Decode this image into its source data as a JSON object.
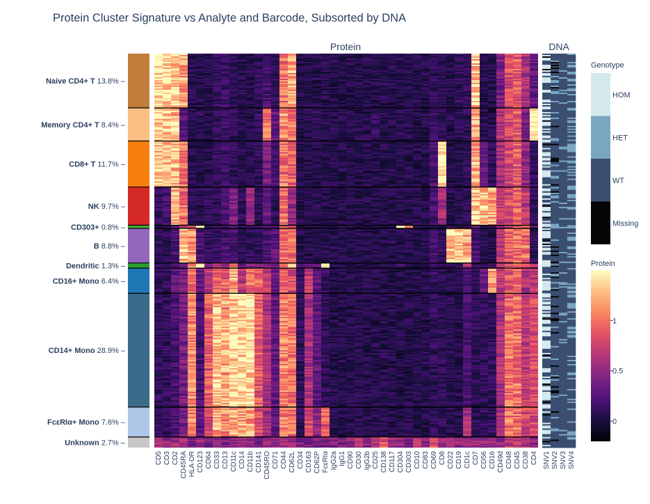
{
  "chart_data": {
    "type": "heatmap",
    "title": "Protein Cluster Signature vs Analyte and Barcode, Subsorted by DNA",
    "panels": {
      "protein": "Protein",
      "dna": "DNA"
    },
    "clusters": [
      {
        "name": "Naive CD4+ T",
        "pct": "13.8%",
        "fraction": 0.138,
        "color": "#c17d3c"
      },
      {
        "name": "Memory CD4+ T",
        "pct": "8.4%",
        "fraction": 0.084,
        "color": "#fbbf83"
      },
      {
        "name": "CD8+ T",
        "pct": "11.7%",
        "fraction": 0.117,
        "color": "#f77f0e"
      },
      {
        "name": "NK",
        "pct": "9.7%",
        "fraction": 0.097,
        "color": "#d62a28"
      },
      {
        "name": "CD303+",
        "pct": "0.8%",
        "fraction": 0.008,
        "color": "#4caf3b"
      },
      {
        "name": "B",
        "pct": "8.8%",
        "fraction": 0.088,
        "color": "#9467bd"
      },
      {
        "name": "Dendritic",
        "pct": "1.3%",
        "fraction": 0.013,
        "color": "#2ca02c"
      },
      {
        "name": "CD16+ Mono",
        "pct": "6.4%",
        "fraction": 0.064,
        "color": "#1f77b4"
      },
      {
        "name": "CD14+ Mono",
        "pct": "28.9%",
        "fraction": 0.289,
        "color": "#3b6b8a"
      },
      {
        "name": "FcεRIα+ Mono",
        "pct": "7.6%",
        "fraction": 0.076,
        "color": "#aec7e8"
      },
      {
        "name": "Unknown",
        "pct": "2.7%",
        "fraction": 0.027,
        "color": "#c7c7c7"
      }
    ],
    "proteins": [
      "CD5",
      "CD3",
      "CD2",
      "CD45RA",
      "HLA-DR",
      "CD123",
      "CD64",
      "CD33",
      "CD13",
      "CD11c",
      "CD14",
      "CD11b",
      "CD141",
      "CD45RO",
      "CD71",
      "CD44",
      "CD62L",
      "CD34",
      "CD163",
      "CD62P",
      "FcεRIα",
      "IgG2a",
      "IgG1",
      "CD90",
      "CD30",
      "IgG2b",
      "CD25",
      "CD138",
      "CD117",
      "CD304",
      "CD303",
      "CD10",
      "CD83",
      "CD69",
      "CD8",
      "CD22",
      "CD19",
      "CD1c",
      "CD7",
      "CD56",
      "CD16",
      "CD49d",
      "CD48",
      "CD45",
      "CD38",
      "CD4"
    ],
    "dna_variants": [
      "SNV1",
      "SNV2",
      "SNV3",
      "SNV4"
    ],
    "cluster_mean_expression": [
      [
        1.4,
        1.4,
        1.35,
        1.2,
        0.05,
        0.05,
        0.05,
        0.1,
        0.15,
        0.1,
        0.05,
        0.05,
        0.1,
        0.2,
        0.1,
        1.0,
        1.2,
        0.05,
        0.05,
        0.05,
        0.05,
        0.05,
        0.05,
        0.05,
        0.05,
        0.05,
        0.05,
        0.05,
        0.05,
        0.05,
        0.05,
        0.05,
        0.05,
        0.1,
        0.1,
        0.05,
        0.1,
        0.1,
        1.3,
        0.05,
        0.05,
        0.4,
        0.8,
        0.9,
        0.6,
        0.3
      ],
      [
        1.3,
        1.3,
        1.3,
        0.25,
        0.05,
        0.05,
        0.05,
        0.1,
        0.15,
        0.1,
        0.05,
        0.05,
        0.1,
        1.0,
        0.3,
        1.1,
        1.0,
        0.05,
        0.1,
        0.1,
        0.05,
        0.05,
        0.05,
        0.05,
        0.05,
        0.05,
        0.1,
        0.05,
        0.05,
        0.05,
        0.05,
        0.05,
        0.05,
        0.15,
        0.1,
        0.05,
        0.1,
        0.1,
        1.2,
        0.05,
        0.05,
        0.6,
        0.8,
        0.9,
        0.4,
        1.5
      ],
      [
        1.3,
        1.3,
        1.3,
        1.0,
        0.05,
        0.05,
        0.05,
        0.1,
        0.15,
        0.1,
        0.05,
        0.05,
        0.1,
        0.4,
        0.2,
        1.0,
        0.9,
        0.05,
        0.05,
        0.05,
        0.05,
        0.05,
        0.05,
        0.05,
        0.05,
        0.05,
        0.05,
        0.05,
        0.05,
        0.05,
        0.05,
        0.05,
        0.05,
        0.2,
        1.5,
        0.05,
        0.05,
        0.1,
        1.2,
        0.3,
        0.1,
        0.6,
        0.8,
        0.9,
        0.5,
        0.1
      ],
      [
        0.1,
        0.2,
        1.2,
        1.0,
        0.1,
        0.05,
        0.1,
        0.1,
        0.2,
        0.4,
        0.1,
        0.5,
        0.1,
        0.3,
        0.1,
        1.0,
        0.5,
        0.05,
        0.05,
        0.05,
        0.05,
        0.05,
        0.05,
        0.05,
        0.05,
        0.05,
        0.05,
        0.05,
        0.05,
        0.05,
        0.05,
        0.05,
        0.05,
        0.2,
        0.6,
        0.05,
        0.05,
        0.1,
        1.4,
        1.3,
        1.2,
        0.7,
        0.8,
        0.9,
        0.7,
        0.1
      ],
      [
        0.1,
        0.1,
        0.3,
        0.6,
        0.8,
        1.5,
        0.1,
        0.2,
        0.2,
        0.2,
        0.1,
        0.1,
        0.1,
        0.2,
        0.2,
        0.9,
        0.7,
        0.05,
        0.05,
        0.05,
        0.05,
        0.05,
        0.05,
        0.05,
        0.05,
        0.05,
        0.05,
        0.05,
        0.05,
        1.3,
        1.3,
        0.05,
        0.05,
        0.1,
        0.1,
        0.05,
        0.05,
        0.1,
        0.3,
        0.1,
        0.1,
        0.6,
        0.8,
        0.9,
        0.9,
        0.4
      ],
      [
        0.1,
        0.1,
        0.2,
        1.3,
        1.1,
        0.2,
        0.1,
        0.1,
        0.2,
        0.2,
        0.1,
        0.1,
        0.1,
        0.2,
        0.3,
        1.0,
        1.0,
        0.05,
        0.05,
        0.05,
        0.05,
        0.05,
        0.05,
        0.05,
        0.05,
        0.05,
        0.05,
        0.05,
        0.05,
        0.05,
        0.05,
        0.05,
        0.05,
        0.2,
        0.1,
        1.3,
        1.3,
        1.2,
        0.2,
        0.05,
        0.05,
        0.7,
        0.9,
        1.0,
        1.0,
        0.1
      ],
      [
        0.1,
        0.1,
        0.2,
        0.3,
        1.2,
        1.5,
        0.4,
        0.6,
        0.5,
        1.0,
        0.3,
        0.5,
        0.4,
        0.4,
        0.4,
        0.9,
        1.5,
        0.2,
        0.3,
        0.3,
        1.5,
        0.05,
        0.05,
        0.05,
        0.05,
        0.05,
        0.05,
        0.05,
        0.05,
        0.2,
        0.1,
        0.05,
        0.05,
        0.1,
        0.1,
        0.1,
        0.1,
        0.6,
        0.1,
        0.1,
        0.2,
        0.6,
        0.9,
        1.0,
        0.8,
        0.6
      ],
      [
        0.1,
        0.1,
        0.3,
        0.4,
        1.0,
        0.3,
        0.7,
        0.9,
        0.9,
        1.2,
        0.7,
        1.0,
        0.9,
        0.7,
        0.3,
        1.0,
        0.8,
        0.1,
        0.7,
        0.3,
        0.1,
        0.05,
        0.05,
        0.05,
        0.05,
        0.05,
        0.05,
        0.05,
        0.05,
        0.05,
        0.05,
        0.05,
        0.05,
        0.1,
        0.1,
        0.05,
        0.05,
        0.2,
        0.1,
        0.3,
        1.2,
        0.7,
        0.9,
        1.0,
        0.6,
        0.7
      ],
      [
        0.1,
        0.1,
        0.2,
        0.4,
        1.1,
        0.2,
        0.9,
        1.3,
        1.2,
        1.4,
        1.4,
        1.4,
        0.9,
        0.6,
        0.3,
        1.1,
        1.0,
        0.1,
        0.6,
        0.3,
        0.1,
        0.05,
        0.05,
        0.05,
        0.05,
        0.05,
        0.05,
        0.05,
        0.05,
        0.05,
        0.05,
        0.05,
        0.05,
        0.1,
        0.1,
        0.05,
        0.05,
        0.2,
        0.1,
        0.1,
        0.1,
        0.6,
        1.0,
        1.0,
        0.7,
        0.8
      ],
      [
        0.1,
        0.1,
        0.2,
        0.4,
        1.1,
        0.3,
        0.8,
        1.2,
        1.1,
        1.2,
        1.2,
        1.2,
        0.8,
        0.6,
        0.3,
        1.1,
        1.0,
        0.1,
        0.8,
        0.5,
        0.9,
        0.05,
        0.05,
        0.05,
        0.05,
        0.05,
        0.05,
        0.05,
        0.05,
        0.05,
        0.05,
        0.05,
        0.05,
        0.1,
        0.1,
        0.05,
        0.05,
        0.6,
        0.1,
        0.1,
        0.1,
        0.6,
        1.0,
        1.0,
        0.8,
        0.8
      ],
      [
        0.6,
        0.5,
        0.6,
        0.6,
        0.4,
        0.5,
        0.4,
        0.5,
        0.4,
        0.5,
        0.5,
        0.5,
        0.4,
        0.5,
        0.5,
        0.6,
        0.5,
        0.4,
        0.4,
        0.4,
        0.4,
        0.4,
        0.4,
        0.5,
        0.7,
        0.5,
        0.6,
        0.9,
        0.6,
        0.5,
        0.4,
        0.6,
        0.5,
        0.8,
        0.5,
        0.5,
        0.5,
        0.5,
        0.6,
        0.5,
        0.5,
        0.5,
        0.7,
        0.7,
        0.6,
        0.5
      ]
    ],
    "genotype_legend": {
      "title": "Genotype",
      "categories": [
        {
          "label": "HOM",
          "color": "#d4e8ee"
        },
        {
          "label": "HET",
          "color": "#7ba6c2"
        },
        {
          "label": "WT",
          "color": "#3b4e72"
        },
        {
          "label": "Missing",
          "color": "#050505"
        }
      ]
    },
    "protein_colorbar": {
      "title": "Protein",
      "ticks": [
        0,
        0.5,
        1
      ],
      "tick_labels": [
        "0",
        "0.5",
        "1"
      ],
      "range": [
        -0.2,
        1.5
      ],
      "colormap": "magma"
    }
  }
}
